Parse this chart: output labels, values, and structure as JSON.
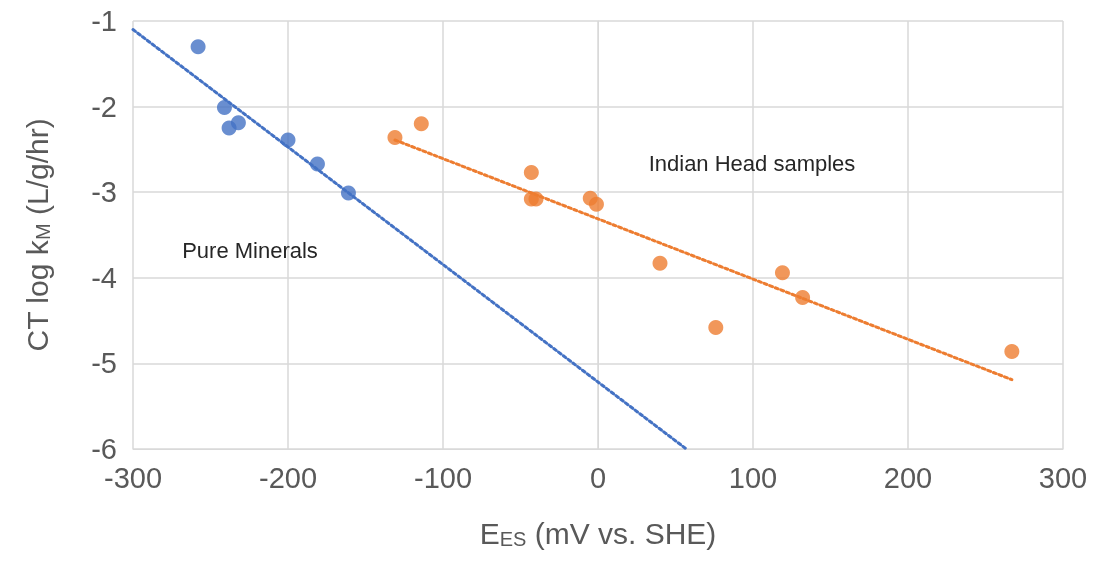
{
  "chart_data": {
    "type": "scatter",
    "xlabel": "E$_{ES}$ (mV vs. SHE)",
    "ylabel": "CT log k$_{M}$ (L/g/hr)",
    "xlim": [
      -300,
      300
    ],
    "xticks": [
      -300,
      -200,
      -100,
      0,
      100,
      200,
      300
    ],
    "ylim": [
      -6,
      -1
    ],
    "yticks": [
      -6,
      -5,
      -4,
      -3,
      -2,
      -1
    ],
    "grid": true,
    "marker": "circle",
    "series": [
      {
        "color": "#4472c4",
        "x": [
          -258,
          -241,
          -238,
          -232,
          -200,
          -181,
          -161
        ],
        "values": [
          -1.3,
          -2.01,
          -2.25,
          -2.19,
          -2.39,
          -2.67,
          -3.01
        ]
      },
      {
        "color": "#ed7d31",
        "x": [
          -131,
          -114,
          -43,
          -43,
          -40,
          -5,
          -1,
          40,
          76,
          119,
          132,
          267
        ],
        "values": [
          -2.36,
          -2.2,
          -2.77,
          -3.08,
          -3.08,
          -3.07,
          -3.14,
          -3.83,
          -4.58,
          -3.94,
          -4.23,
          -4.86
        ]
      },
      {
        "type": "line",
        "color": "#4472c4",
        "line_style": "dotted",
        "marker": "none",
        "x": [
          -300,
          57
        ],
        "values": [
          -1.1,
          -6
        ]
      },
      {
        "type": "line",
        "color": "#ed7d31",
        "line_style": "dotted",
        "marker": "none",
        "x": [
          -131,
          267
        ],
        "values": [
          -2.39,
          -5.19
        ]
      }
    ],
    "annotations": [
      "Pure Minerals",
      "Indian Head samples"
    ]
  }
}
